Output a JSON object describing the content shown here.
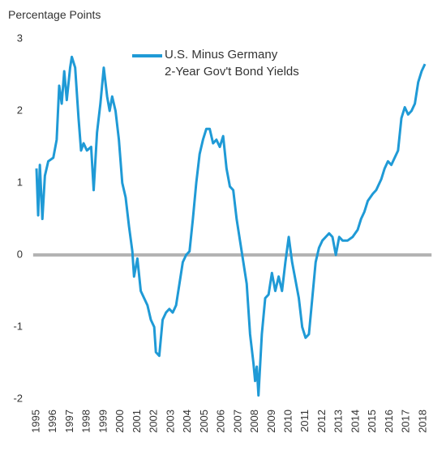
{
  "chart_data": {
    "type": "line",
    "ylabel": "Percentage Points",
    "xlim": [
      1994.8,
      2018.3
    ],
    "ylim": [
      -2,
      3
    ],
    "xticks": [
      1995,
      1996,
      1997,
      1998,
      1999,
      2000,
      2001,
      2002,
      2003,
      2004,
      2005,
      2006,
      2007,
      2008,
      2009,
      2010,
      2011,
      2012,
      2013,
      2014,
      2015,
      2016,
      2017,
      2018
    ],
    "yticks": [
      3,
      2,
      1,
      0,
      -1,
      -2
    ],
    "zero_line": true,
    "zero_line_color": "#b3b3b3",
    "x": [
      1995.0,
      1995.1,
      1995.2,
      1995.35,
      1995.5,
      1995.7,
      1996.0,
      1996.2,
      1996.35,
      1996.5,
      1996.65,
      1996.8,
      1997.0,
      1997.1,
      1997.3,
      1997.5,
      1997.65,
      1997.8,
      1998.0,
      1998.25,
      1998.4,
      1998.6,
      1998.8,
      1999.0,
      1999.2,
      1999.35,
      1999.5,
      1999.7,
      1999.9,
      2000.1,
      2000.3,
      2000.5,
      2000.7,
      2000.8,
      2001.0,
      2001.2,
      2001.4,
      2001.6,
      2001.8,
      2002.0,
      2002.1,
      2002.3,
      2002.5,
      2002.7,
      2002.9,
      2003.1,
      2003.3,
      2003.5,
      2003.7,
      2003.9,
      2004.1,
      2004.3,
      2004.5,
      2004.7,
      2004.9,
      2005.1,
      2005.3,
      2005.5,
      2005.7,
      2005.9,
      2006.1,
      2006.3,
      2006.5,
      2006.7,
      2006.9,
      2007.1,
      2007.3,
      2007.5,
      2007.7,
      2007.9,
      2008.0,
      2008.1,
      2008.2,
      2008.4,
      2008.6,
      2008.8,
      2009.0,
      2009.2,
      2009.4,
      2009.6,
      2009.8,
      2010.0,
      2010.2,
      2010.4,
      2010.6,
      2010.8,
      2011.0,
      2011.2,
      2011.4,
      2011.6,
      2011.8,
      2012.0,
      2012.2,
      2012.4,
      2012.6,
      2012.8,
      2013.0,
      2013.2,
      2013.5,
      2013.8,
      2014.1,
      2014.3,
      2014.5,
      2014.7,
      2015.0,
      2015.2,
      2015.5,
      2015.7,
      2015.9,
      2016.1,
      2016.3,
      2016.5,
      2016.7,
      2016.9,
      2017.1,
      2017.3,
      2017.5,
      2017.7,
      2017.9,
      2018.1
    ],
    "series": [
      {
        "name": "U.S. Minus Germany\n2-Year Gov't Bond Yields",
        "color": "#1f9ad6",
        "values": [
          1.2,
          0.55,
          1.25,
          0.5,
          1.1,
          1.3,
          1.35,
          1.6,
          2.35,
          2.1,
          2.55,
          2.15,
          2.6,
          2.75,
          2.6,
          1.9,
          1.45,
          1.55,
          1.45,
          1.5,
          0.9,
          1.7,
          2.1,
          2.6,
          2.2,
          2.0,
          2.2,
          2.0,
          1.6,
          1.0,
          0.8,
          0.4,
          0.05,
          -0.3,
          -0.05,
          -0.5,
          -0.6,
          -0.7,
          -0.9,
          -1.0,
          -1.35,
          -1.4,
          -0.9,
          -0.8,
          -0.75,
          -0.8,
          -0.7,
          -0.4,
          -0.1,
          0.0,
          0.05,
          0.5,
          1.0,
          1.4,
          1.6,
          1.75,
          1.75,
          1.55,
          1.6,
          1.5,
          1.65,
          1.2,
          0.95,
          0.9,
          0.5,
          0.2,
          -0.1,
          -0.4,
          -1.1,
          -1.5,
          -1.75,
          -1.55,
          -1.95,
          -1.1,
          -0.6,
          -0.55,
          -0.25,
          -0.5,
          -0.3,
          -0.5,
          -0.1,
          0.25,
          -0.1,
          -0.35,
          -0.6,
          -1.0,
          -1.15,
          -1.1,
          -0.6,
          -0.1,
          0.1,
          0.2,
          0.25,
          0.3,
          0.25,
          0.0,
          0.25,
          0.2,
          0.2,
          0.25,
          0.35,
          0.5,
          0.6,
          0.75,
          0.85,
          0.9,
          1.05,
          1.2,
          1.3,
          1.25,
          1.35,
          1.45,
          1.9,
          2.05,
          1.95,
          2.0,
          2.1,
          2.4,
          2.55,
          2.65
        ]
      }
    ]
  }
}
